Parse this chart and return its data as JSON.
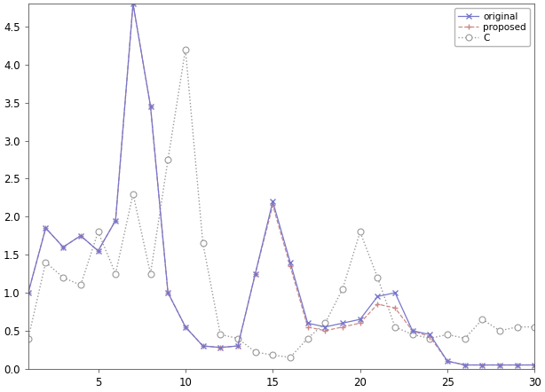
{
  "title": "",
  "xlabel": "",
  "ylabel": "",
  "xlim": [
    1,
    30
  ],
  "ylim": [
    0,
    4.8
  ],
  "x": [
    1,
    2,
    3,
    4,
    5,
    6,
    7,
    8,
    9,
    10,
    11,
    12,
    13,
    14,
    15,
    16,
    17,
    18,
    19,
    20,
    21,
    22,
    23,
    24,
    25,
    26,
    27,
    28,
    29,
    30
  ],
  "original": [
    1.0,
    1.85,
    1.6,
    1.75,
    1.55,
    1.95,
    4.8,
    3.45,
    1.0,
    0.55,
    0.3,
    0.28,
    0.3,
    1.25,
    2.2,
    1.4,
    0.6,
    0.55,
    0.6,
    0.65,
    0.95,
    1.0,
    0.5,
    0.45,
    0.1,
    0.05,
    0.05,
    0.05,
    0.05,
    0.05
  ],
  "proposed": [
    1.0,
    1.85,
    1.6,
    1.75,
    1.55,
    1.95,
    4.8,
    3.45,
    1.0,
    0.55,
    0.3,
    0.28,
    0.3,
    1.25,
    2.15,
    1.35,
    0.55,
    0.5,
    0.55,
    0.6,
    0.85,
    0.8,
    0.5,
    0.42,
    0.1,
    0.05,
    0.05,
    0.05,
    0.05,
    0.05
  ],
  "C": [
    0.4,
    1.4,
    1.2,
    1.1,
    1.8,
    1.25,
    2.3,
    1.25,
    2.75,
    4.2,
    1.65,
    0.45,
    0.4,
    0.22,
    0.18,
    0.15,
    0.4,
    0.6,
    1.05,
    1.8,
    1.2,
    0.55,
    0.45,
    0.4,
    0.45,
    0.4,
    0.65,
    0.5,
    0.55,
    0.55
  ],
  "original_color": "#7777cc",
  "proposed_color": "#cc8888",
  "C_color": "#999999",
  "background_color": "#ffffff",
  "xticks": [
    5,
    10,
    15,
    20,
    25,
    30
  ],
  "yticks": [
    0,
    0.5,
    1,
    1.5,
    2,
    2.5,
    3,
    3.5,
    4,
    4.5
  ]
}
